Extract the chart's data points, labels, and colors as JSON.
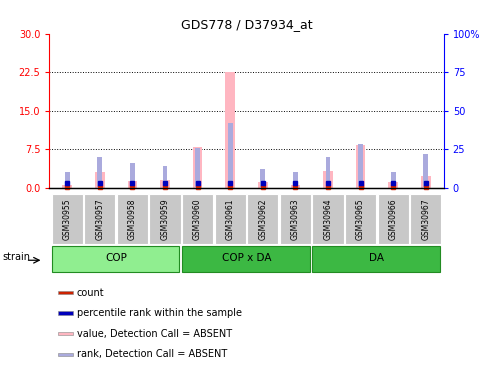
{
  "title": "GDS778 / D37934_at",
  "samples": [
    "GSM30955",
    "GSM30957",
    "GSM30958",
    "GSM30959",
    "GSM30960",
    "GSM30961",
    "GSM30962",
    "GSM30963",
    "GSM30964",
    "GSM30965",
    "GSM30966",
    "GSM30967"
  ],
  "groups": [
    {
      "name": "COP",
      "start": 0,
      "end": 3,
      "color": "#90EE90"
    },
    {
      "name": "COP x DA",
      "start": 4,
      "end": 7,
      "color": "#3CB843"
    },
    {
      "name": "DA",
      "start": 8,
      "end": 11,
      "color": "#3CB843"
    }
  ],
  "values_absent": [
    0.4,
    3.0,
    1.2,
    1.5,
    8.0,
    22.5,
    1.0,
    0.5,
    3.2,
    8.2,
    1.0,
    2.2
  ],
  "rank_absent_pct": [
    10,
    20,
    16,
    14,
    26,
    42,
    12,
    10,
    20,
    28,
    10,
    22
  ],
  "count_val": [
    0.12,
    0.12,
    0.12,
    0.12,
    0.12,
    0.12,
    0.12,
    0.12,
    0.12,
    0.12,
    0.12,
    0.12
  ],
  "percentile_val_pct": [
    3,
    3,
    3,
    3,
    3,
    3,
    3,
    3,
    3,
    3,
    3,
    3
  ],
  "ylim_left": [
    0,
    30
  ],
  "ylim_right": [
    0,
    100
  ],
  "yticks_left": [
    0,
    7.5,
    15,
    22.5,
    30
  ],
  "yticks_right": [
    0,
    25,
    50,
    75,
    100
  ],
  "color_value_absent": "#FFB6C1",
  "color_rank_absent": "#AAAADD",
  "color_count": "#CC2200",
  "color_percentile": "#0000BB",
  "pink_bar_width": 0.3,
  "blue_bar_width": 0.15,
  "gray_box_color": "#C8C8C8",
  "group_border_color": "#228B22",
  "strain_label": "strain"
}
